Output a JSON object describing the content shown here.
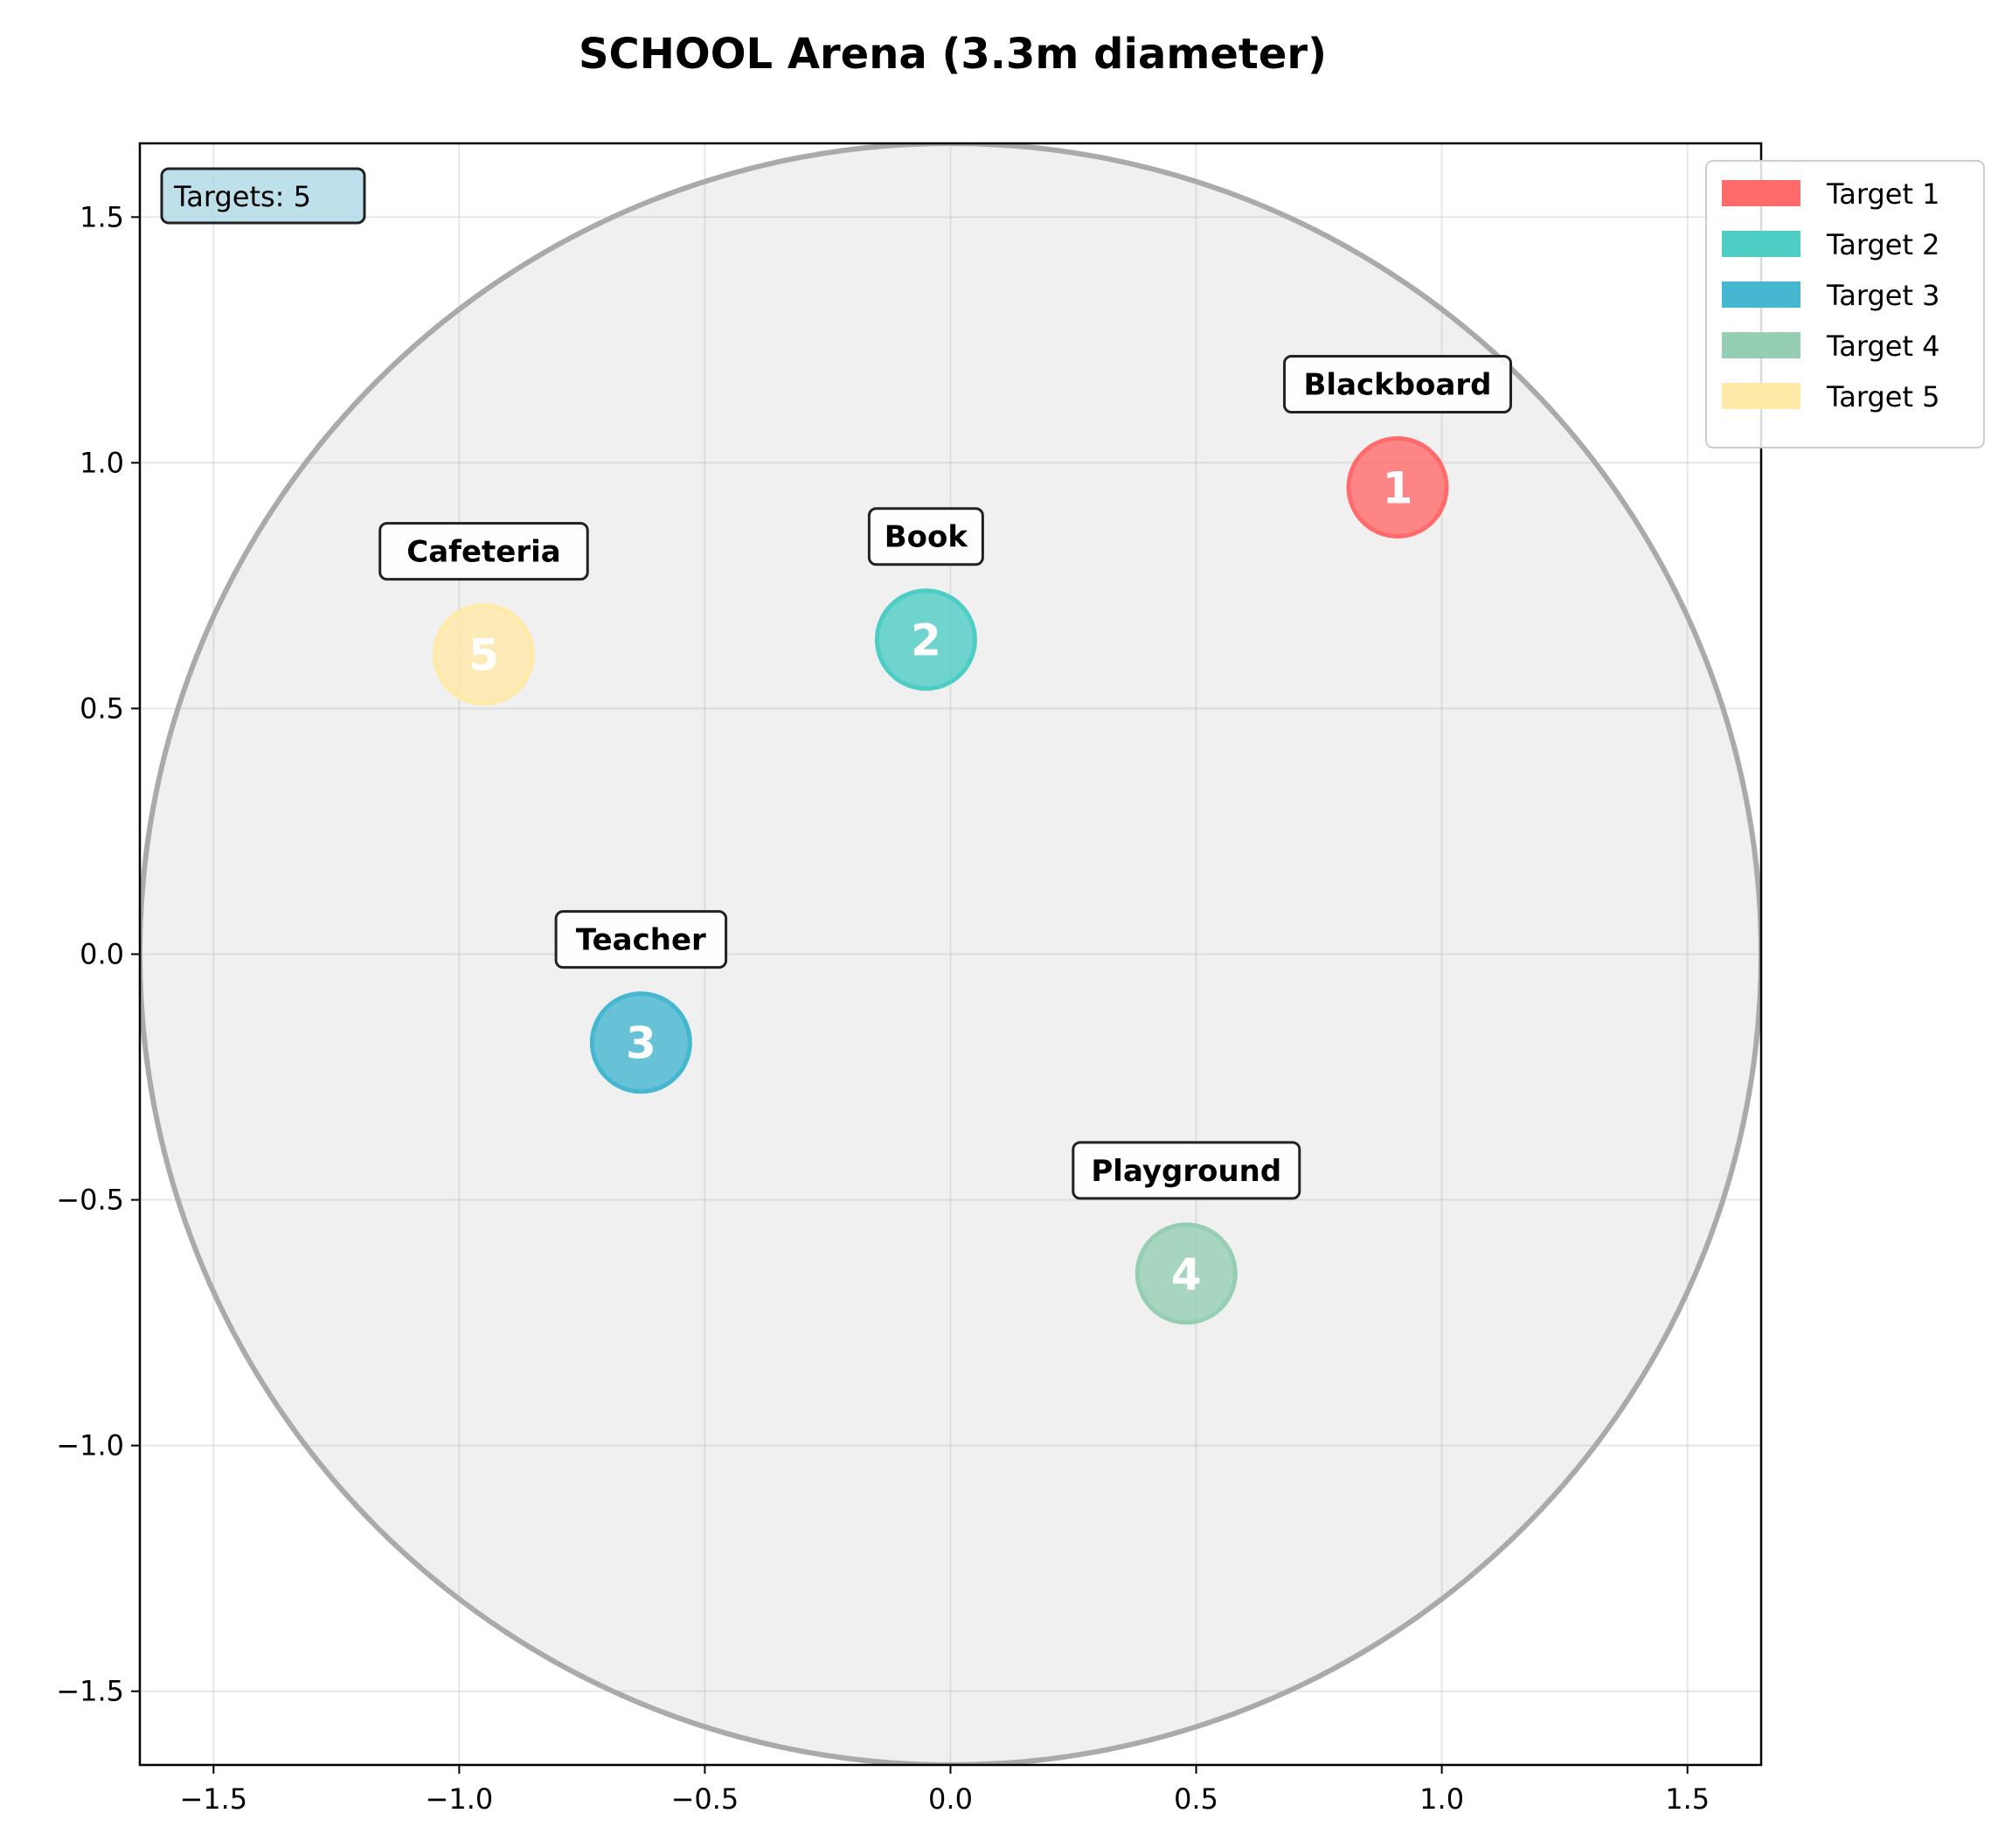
{
  "chart_data": {
    "type": "scatter",
    "title": "SCHOOL Arena (3.3m diameter)",
    "xlabel": "",
    "ylabel": "",
    "xlim": [
      -1.65,
      1.65
    ],
    "ylim": [
      -1.65,
      1.65
    ],
    "xticks": [
      -1.5,
      -1.0,
      -0.5,
      0.0,
      0.5,
      1.0,
      1.5
    ],
    "yticks": [
      -1.5,
      -1.0,
      -0.5,
      0.0,
      0.5,
      1.0,
      1.5
    ],
    "xtick_labels": [
      "−1.5",
      "−1.0",
      "−0.5",
      "0.0",
      "0.5",
      "1.0",
      "1.5"
    ],
    "ytick_labels": [
      "−1.5",
      "−1.0",
      "−0.5",
      "0.0",
      "0.5",
      "1.0",
      "1.5"
    ],
    "grid": true,
    "legend_position": "outside top-right",
    "arena": {
      "center": [
        0,
        0
      ],
      "radius": 1.65,
      "fill": "#f0f0f0",
      "stroke": "#aaaaaa"
    },
    "count_label": "Targets: 5",
    "series": [
      {
        "name": "Target 1",
        "number": "1",
        "label": "Blackboard",
        "x": 0.91,
        "y": 0.95,
        "color": "#ff6b6b"
      },
      {
        "name": "Target 2",
        "number": "2",
        "label": "Book",
        "x": -0.05,
        "y": 0.64,
        "color": "#4ecdc4"
      },
      {
        "name": "Target 3",
        "number": "3",
        "label": "Teacher",
        "x": -0.63,
        "y": -0.18,
        "color": "#45b7d1"
      },
      {
        "name": "Target 4",
        "number": "4",
        "label": "Playground",
        "x": 0.48,
        "y": -0.65,
        "color": "#96ceb4"
      },
      {
        "name": "Target 5",
        "number": "5",
        "label": "Cafeteria",
        "x": -0.95,
        "y": 0.61,
        "color": "#ffeaa7"
      }
    ]
  }
}
